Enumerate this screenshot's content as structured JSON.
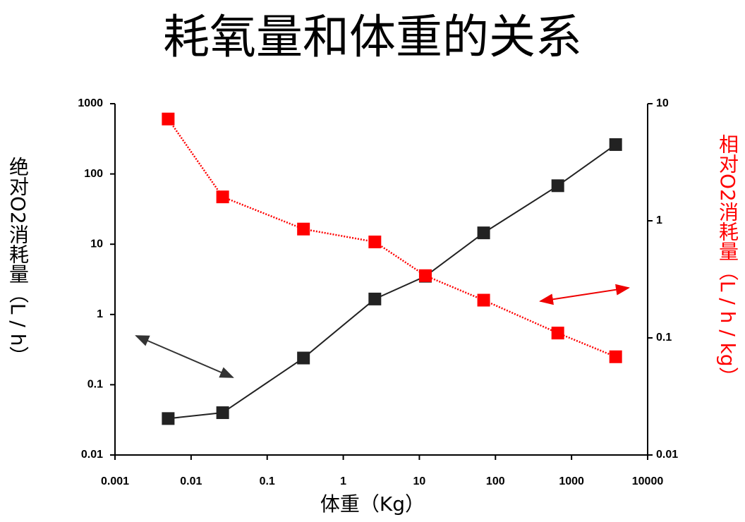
{
  "chart_data": {
    "type": "scatter",
    "title": "耗氧量和体重的关系",
    "x_label": "体重（Kg）",
    "y_label": "绝对O2消耗量（L / h）",
    "y2_label": "相对O2消耗量（L / h / kg）",
    "x_log": true,
    "y_log": true,
    "y2_log": true,
    "xlim": [
      0.001,
      10000
    ],
    "xticks": [
      0.001,
      0.01,
      0.1,
      1,
      10,
      100,
      1000,
      10000
    ],
    "ylim": [
      0.01,
      1000
    ],
    "yticks": [
      0.01,
      0.1,
      1,
      10,
      100,
      1000
    ],
    "y2lim": [
      0.01,
      10
    ],
    "y2ticks": [
      0.01,
      0.1,
      1,
      10
    ],
    "x": [
      0.005,
      0.026,
      0.3,
      2.6,
      12,
      70,
      660,
      3800
    ],
    "series": [
      {
        "color": "#222222",
        "line": "solid",
        "values": [
          0.033,
          0.04,
          0.24,
          1.66,
          3.5,
          14.5,
          68,
          262
        ]
      },
      {
        "color": "#ff0000",
        "axis": "y2",
        "line": "dotted",
        "values": [
          7.4,
          1.6,
          0.85,
          0.66,
          0.34,
          0.21,
          0.11,
          0.069
        ]
      }
    ]
  }
}
